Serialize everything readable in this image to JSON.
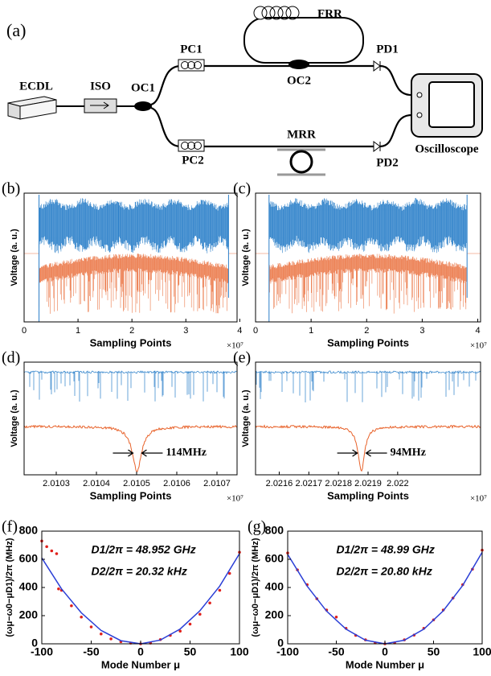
{
  "diagram": {
    "panel_label": "(a)",
    "ecdl": "ECDL",
    "iso": "ISO",
    "oc1": "OC1",
    "pc1": "PC1",
    "pc2": "PC2",
    "frr": "FRR",
    "oc2": "OC2",
    "mrr": "MRR",
    "pd1": "PD1",
    "pd2": "PD2",
    "oscilloscope": "Oscilloscope"
  },
  "chart_data": [
    {
      "type": "line",
      "panel_label": "(b)",
      "xlabel": "Sampling Points",
      "ylabel": "Voltage (a. u.)",
      "x_multiplier": "×10⁷",
      "xlim": [
        0,
        3.95
      ],
      "xticks": [
        0,
        1,
        2,
        3,
        4
      ]
    },
    {
      "type": "line",
      "panel_label": "(c)",
      "xlabel": "Sampling Points",
      "ylabel": "Voltage (a. u.)",
      "x_multiplier": "×10⁷",
      "xlim": [
        0,
        4.05
      ],
      "xticks": [
        0,
        1,
        2,
        3,
        4
      ]
    },
    {
      "type": "line",
      "panel_label": "(d)",
      "xlabel": "Sampling Points",
      "ylabel": "Voltage (a. u.)",
      "x_multiplier": "×10⁷",
      "xlim": [
        2.01022,
        2.01075
      ],
      "xticks": [
        2.0103,
        2.0104,
        2.0105,
        2.0106,
        2.0107
      ],
      "annotations": [
        "114MHz"
      ]
    },
    {
      "type": "line",
      "panel_label": "(e)",
      "xlabel": "Sampling Points",
      "ylabel": "Voltage (a. u.)",
      "x_multiplier": "×10⁷",
      "xlim": [
        2.02152,
        2.02228
      ],
      "xticks": [
        2.0216,
        2.0217,
        2.0218,
        2.0219,
        2.022
      ],
      "annotations": [
        "94MHz"
      ]
    },
    {
      "type": "scatter",
      "panel_label": "(f)",
      "xlabel": "Mode Number μ",
      "ylabel": "(ωμ−ω0−μD1)/2π (MHz)",
      "xlim": [
        -100,
        100
      ],
      "xticks": [
        -100,
        -50,
        0,
        50,
        100
      ],
      "ylim": [
        0,
        800
      ],
      "yticks": [
        0,
        200,
        400,
        600,
        800
      ],
      "annotations": [
        "D1/2π = 48.952 GHz",
        "D2/2π = 20.32 kHz"
      ],
      "series": [
        {
          "style": "points",
          "color": "#e0201b",
          "x": [
            -100,
            -95,
            -90,
            -85,
            -83,
            -80,
            -70,
            -60,
            -50,
            -40,
            -30,
            -20,
            -10,
            0,
            10,
            20,
            30,
            40,
            50,
            60,
            70,
            80,
            90,
            100
          ],
          "values": [
            730,
            690,
            660,
            640,
            390,
            380,
            270,
            190,
            120,
            70,
            35,
            15,
            5,
            0,
            5,
            30,
            60,
            90,
            140,
            210,
            290,
            380,
            500,
            650
          ]
        },
        {
          "style": "line",
          "color": "#2b3fd6",
          "x": [
            -100,
            -80,
            -60,
            -40,
            -20,
            0,
            20,
            40,
            60,
            80,
            100
          ],
          "values": [
            610,
            390,
            220,
            95,
            22,
            0,
            27,
            105,
            235,
            410,
            640
          ]
        }
      ]
    },
    {
      "type": "scatter",
      "panel_label": "(g)",
      "xlabel": "Mode Number μ",
      "ylabel": "(ωμ−ω0−μD1)/2π (MHz)",
      "xlim": [
        -100,
        100
      ],
      "xticks": [
        -100,
        -50,
        0,
        50,
        100
      ],
      "ylim": [
        0,
        800
      ],
      "yticks": [
        0,
        200,
        400,
        600,
        800
      ],
      "annotations": [
        "D1/2π = 48.99 GHz",
        "D2/2π = 20.80 kHz"
      ],
      "series": [
        {
          "style": "points",
          "color": "#e0201b",
          "x": [
            -100,
            -90,
            -80,
            -70,
            -60,
            -50,
            -40,
            -30,
            -20,
            -10,
            0,
            10,
            20,
            30,
            40,
            50,
            60,
            70,
            80,
            90,
            100
          ],
          "values": [
            645,
            525,
            420,
            320,
            240,
            190,
            110,
            60,
            28,
            7,
            0,
            7,
            28,
            62,
            110,
            170,
            240,
            325,
            420,
            530,
            665
          ]
        },
        {
          "style": "line",
          "color": "#2b3fd6",
          "x": [
            -100,
            -80,
            -60,
            -40,
            -20,
            0,
            20,
            40,
            60,
            80,
            100
          ],
          "values": [
            635,
            410,
            232,
            104,
            26,
            0,
            26,
            104,
            234,
            415,
            650
          ]
        }
      ]
    }
  ]
}
